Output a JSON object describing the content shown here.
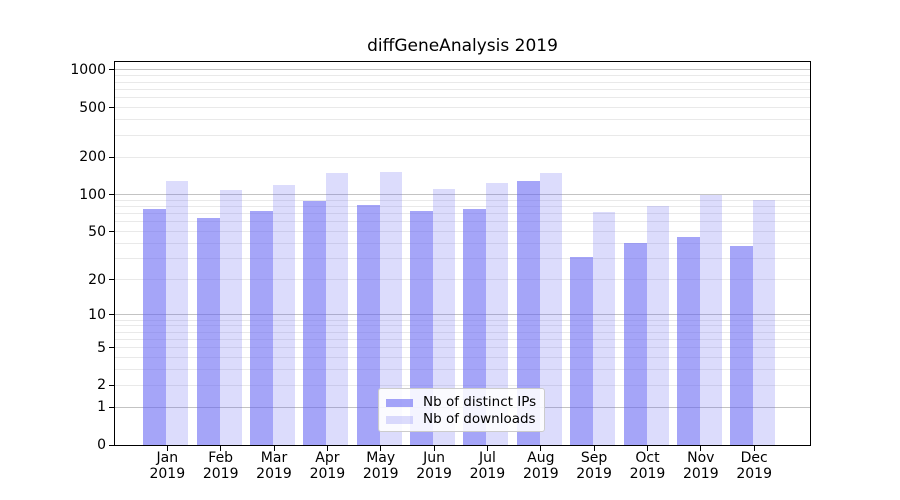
{
  "title": "diffGeneAnalysis 2019",
  "chart_data": {
    "type": "bar",
    "title": "diffGeneAnalysis 2019",
    "xlabel": "",
    "ylabel": "",
    "y_scale": "log-like (log10 of 1+value), zero shown at baseline",
    "ylim": [
      0,
      1150
    ],
    "grid": "on",
    "legend_position": "lower center",
    "categories": [
      "Jan 2019",
      "Feb 2019",
      "Mar 2019",
      "Apr 2019",
      "May 2019",
      "Jun 2019",
      "Jul 2019",
      "Aug 2019",
      "Sep 2019",
      "Oct 2019",
      "Nov 2019",
      "Dec 2019"
    ],
    "y_ticks": [
      {
        "label": "1000",
        "value": 1000
      },
      {
        "label": "500",
        "value": 500
      },
      {
        "label": "200",
        "value": 200
      },
      {
        "label": "100",
        "value": 100
      },
      {
        "label": "50",
        "value": 50
      },
      {
        "label": "20",
        "value": 20
      },
      {
        "label": "10",
        "value": 10
      },
      {
        "label": "5",
        "value": 5
      },
      {
        "label": "2",
        "value": 2
      },
      {
        "label": "1",
        "value": 1
      },
      {
        "label": "0",
        "value": 0
      }
    ],
    "series": [
      {
        "name": "Nb of distinct IPs",
        "color": "rgba(97,97,243,0.57)",
        "values": [
          76,
          65,
          74,
          89,
          83,
          74,
          77,
          128,
          31,
          40,
          45,
          38
        ]
      },
      {
        "name": "Nb of downloads",
        "color": "rgba(97,97,243,0.22)",
        "values": [
          128,
          108,
          119,
          150,
          151,
          110,
          125,
          150,
          72,
          81,
          100,
          90
        ]
      }
    ]
  }
}
